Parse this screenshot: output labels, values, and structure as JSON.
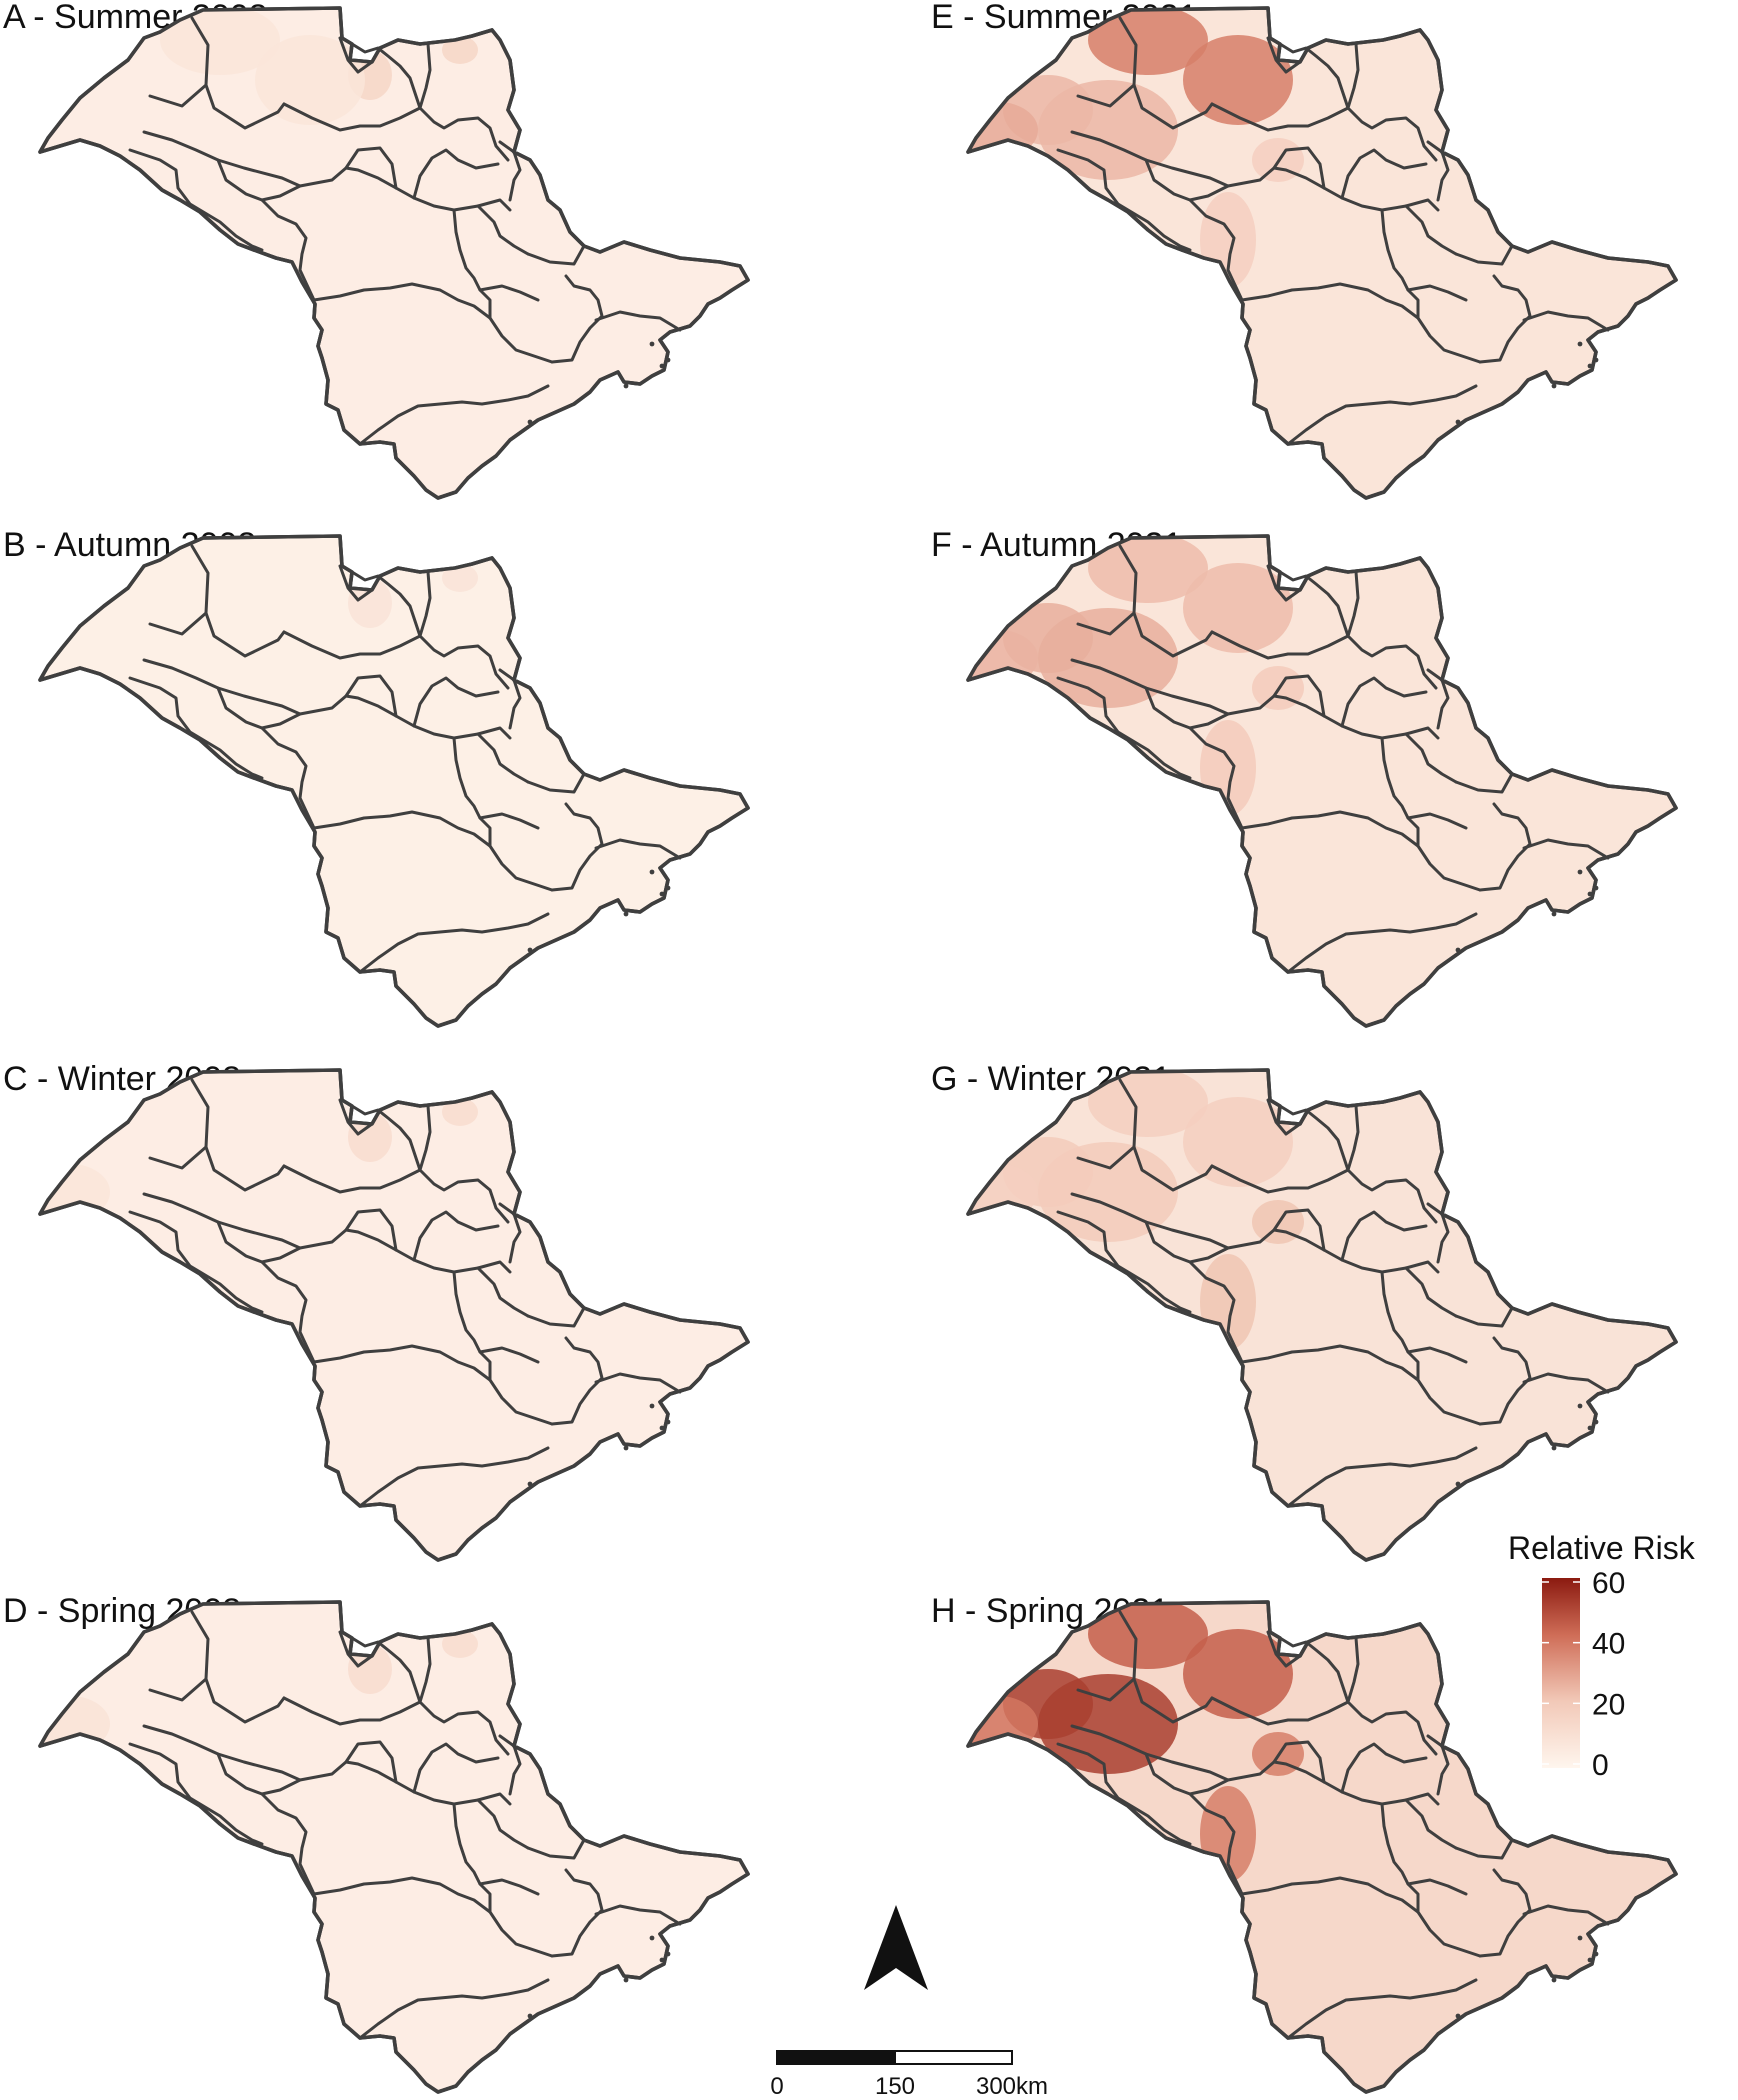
{
  "panels": [
    {
      "id": "A",
      "title": "A - Summer 2008",
      "base_risk": 4,
      "hotspots": [
        {
          "area": "north-east corner",
          "risk": 15
        },
        {
          "area": "north border",
          "risk": 8
        }
      ]
    },
    {
      "id": "B",
      "title": "B - Autumn 2008",
      "base_risk": 3,
      "hotspots": [
        {
          "area": "north-east corner",
          "risk": 9
        }
      ]
    },
    {
      "id": "C",
      "title": "C - Winter 2008",
      "base_risk": 4,
      "hotspots": [
        {
          "area": "north-east corner",
          "risk": 12
        },
        {
          "area": "west tip",
          "risk": 8
        }
      ]
    },
    {
      "id": "D",
      "title": "D - Spring 2008",
      "base_risk": 4,
      "hotspots": [
        {
          "area": "north-east corner",
          "risk": 12
        },
        {
          "area": "west tip",
          "risk": 9
        }
      ]
    },
    {
      "id": "E",
      "title": "E - Summer 2021",
      "base_risk": 8,
      "hotspots": [
        {
          "area": "north-west",
          "risk": 25
        },
        {
          "area": "west tip",
          "risk": 28
        },
        {
          "area": "north border",
          "risk": 38
        },
        {
          "area": "central",
          "risk": 18
        }
      ]
    },
    {
      "id": "F",
      "title": "F - Autumn 2021",
      "base_risk": 8,
      "hotspots": [
        {
          "area": "north-west",
          "risk": 27
        },
        {
          "area": "west tip",
          "risk": 26
        },
        {
          "area": "north border",
          "risk": 24
        },
        {
          "area": "central",
          "risk": 20
        }
      ]
    },
    {
      "id": "G",
      "title": "G - Winter 2021",
      "base_risk": 9,
      "hotspots": [
        {
          "area": "north-west",
          "risk": 20
        },
        {
          "area": "west tip",
          "risk": 18
        },
        {
          "area": "north border",
          "risk": 18
        },
        {
          "area": "central",
          "risk": 22
        }
      ]
    },
    {
      "id": "H",
      "title": "H - Spring 2021",
      "base_risk": 14,
      "hotspots": [
        {
          "area": "north-west",
          "risk": 52
        },
        {
          "area": "west tip",
          "risk": 40
        },
        {
          "area": "north border",
          "risk": 45
        },
        {
          "area": "central",
          "risk": 38
        }
      ]
    }
  ],
  "legend": {
    "title": "Relative Risk",
    "ticks": [
      "60",
      "40",
      "20",
      "0"
    ],
    "min": 0,
    "max": 60,
    "colors": {
      "low": "#fff6ee",
      "high": "#8b1a10"
    }
  },
  "scale_bar": {
    "labels": [
      "0",
      "150",
      "300km"
    ]
  },
  "north_arrow": {
    "icon": "north-arrow-icon"
  },
  "colors": {
    "border": "#3f3f3f",
    "background": "#ffffff"
  }
}
